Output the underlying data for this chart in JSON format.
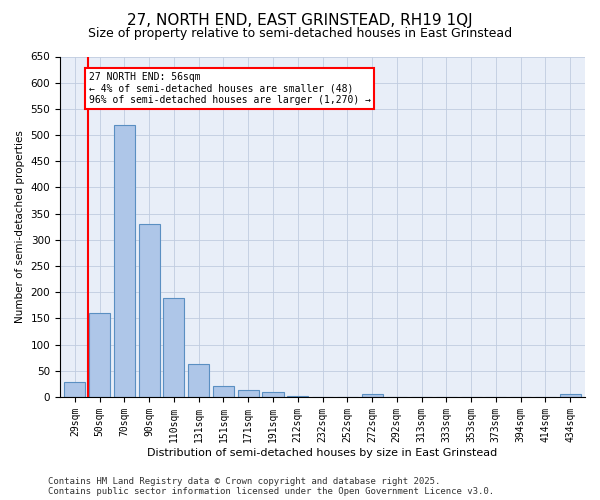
{
  "title": "27, NORTH END, EAST GRINSTEAD, RH19 1QJ",
  "subtitle": "Size of property relative to semi-detached houses in East Grinstead",
  "xlabel": "Distribution of semi-detached houses by size in East Grinstead",
  "ylabel": "Number of semi-detached properties",
  "categories": [
    "29sqm",
    "50sqm",
    "70sqm",
    "90sqm",
    "110sqm",
    "131sqm",
    "151sqm",
    "171sqm",
    "191sqm",
    "212sqm",
    "232sqm",
    "252sqm",
    "272sqm",
    "292sqm",
    "313sqm",
    "333sqm",
    "353sqm",
    "373sqm",
    "394sqm",
    "414sqm",
    "434sqm"
  ],
  "values": [
    28,
    160,
    520,
    330,
    188,
    63,
    20,
    13,
    10,
    1,
    0,
    0,
    5,
    0,
    0,
    0,
    0,
    0,
    0,
    0,
    5
  ],
  "bar_color": "#aec6e8",
  "bar_edge_color": "#5a8fc2",
  "redline_bar_index": 1,
  "annotation_text": "27 NORTH END: 56sqm\n← 4% of semi-detached houses are smaller (48)\n96% of semi-detached houses are larger (1,270) →",
  "annotation_box_color": "white",
  "annotation_box_edge_color": "red",
  "redline_color": "red",
  "ylim": [
    0,
    650
  ],
  "yticks": [
    0,
    50,
    100,
    150,
    200,
    250,
    300,
    350,
    400,
    450,
    500,
    550,
    600,
    650
  ],
  "background_color": "#e8eef8",
  "plot_background": "white",
  "grid_color": "#c0cce0",
  "title_fontsize": 11,
  "subtitle_fontsize": 9,
  "footer_text": "Contains HM Land Registry data © Crown copyright and database right 2025.\nContains public sector information licensed under the Open Government Licence v3.0.",
  "footer_fontsize": 6.5
}
